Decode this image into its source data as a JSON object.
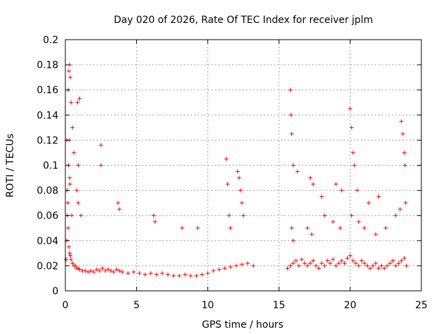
{
  "chart_data": {
    "type": "scatter",
    "title": "Day 020 of 2026, Rate Of TEC Index for receiver jplm",
    "xlabel": "GPS time / hours",
    "ylabel": "ROTI / TECUs",
    "xlim": [
      0,
      25
    ],
    "ylim": [
      0,
      0.2
    ],
    "x_ticks": [
      0,
      5,
      10,
      15,
      20,
      25
    ],
    "y_ticks": [
      0,
      0.02,
      0.04,
      0.06,
      0.08,
      0.1,
      0.12,
      0.14,
      0.16,
      0.18,
      0.2
    ],
    "x_tick_labels": [
      "0",
      "5",
      "10",
      "15",
      "20",
      "25"
    ],
    "y_tick_labels": [
      "0",
      "0.02",
      "0.04",
      "0.06",
      "0.08",
      "0.1",
      "0.12",
      "0.14",
      "0.16",
      "0.18",
      "0.2"
    ],
    "grid": true,
    "marker": "+",
    "color": "#ff0000",
    "series": [
      {
        "name": "ROTI",
        "sampling_note": "representative subset of dense point cloud",
        "x": [
          0.05,
          0.1,
          0.15,
          0.2,
          0.25,
          0.3,
          0.35,
          0.4,
          0.5,
          0.6,
          0.7,
          0.8,
          0.9,
          1.0,
          1.2,
          1.4,
          1.6,
          1.8,
          2.0,
          2.2,
          2.4,
          2.6,
          2.8,
          3.0,
          3.2,
          3.4,
          3.6,
          3.8,
          4.0,
          4.4,
          4.8,
          5.2,
          5.6,
          6.0,
          6.4,
          6.8,
          7.2,
          7.6,
          8.0,
          8.4,
          8.8,
          9.2,
          9.6,
          10.0,
          10.4,
          10.8,
          11.2,
          11.6,
          12.0,
          12.4,
          12.8,
          13.2,
          0.1,
          0.2,
          0.25,
          0.3,
          0.35,
          0.4,
          0.5,
          0.6,
          0.8,
          0.9,
          1.0,
          1.1,
          2.5,
          2.5,
          3.7,
          3.8,
          6.2,
          6.3,
          8.2,
          9.3,
          11.3,
          11.4,
          11.5,
          11.6,
          12.1,
          12.2,
          12.3,
          12.4,
          12.5,
          0.22,
          0.28,
          0.3,
          0.32,
          0.12,
          0.18,
          0.45,
          0.85,
          0.9,
          15.6,
          15.8,
          16.0,
          16.2,
          16.4,
          16.6,
          16.8,
          17.0,
          17.2,
          17.4,
          17.6,
          17.8,
          18.0,
          18.2,
          18.4,
          18.6,
          18.8,
          19.0,
          19.2,
          19.4,
          19.6,
          19.8,
          20.0,
          20.2,
          20.4,
          20.6,
          20.8,
          21.0,
          21.2,
          21.4,
          21.6,
          21.8,
          22.0,
          22.2,
          22.4,
          22.6,
          22.8,
          23.0,
          23.2,
          23.4,
          23.6,
          23.8,
          23.95,
          15.8,
          15.85,
          15.9,
          16.0,
          16.3,
          17.2,
          17.4,
          18.0,
          19.0,
          19.4,
          20.0,
          20.1,
          20.2,
          20.3,
          20.5,
          21.3,
          22.0,
          23.6,
          23.7,
          23.8,
          23.85,
          15.9,
          16.0,
          17.0,
          17.3,
          18.2,
          18.8,
          19.3,
          20.1,
          20.6,
          21.0,
          21.8,
          22.5,
          23.2,
          23.5,
          23.9
        ],
        "y": [
          0.025,
          0.04,
          0.06,
          0.05,
          0.035,
          0.03,
          0.028,
          0.025,
          0.022,
          0.02,
          0.02,
          0.018,
          0.018,
          0.017,
          0.016,
          0.016,
          0.015,
          0.016,
          0.015,
          0.017,
          0.016,
          0.018,
          0.016,
          0.017,
          0.016,
          0.015,
          0.017,
          0.016,
          0.015,
          0.014,
          0.015,
          0.014,
          0.013,
          0.014,
          0.013,
          0.014,
          0.013,
          0.012,
          0.012,
          0.013,
          0.012,
          0.012,
          0.013,
          0.014,
          0.016,
          0.017,
          0.018,
          0.019,
          0.02,
          0.021,
          0.022,
          0.02,
          0.12,
          0.16,
          0.175,
          0.18,
          0.17,
          0.15,
          0.13,
          0.11,
          0.08,
          0.07,
          0.153,
          0.06,
          0.116,
          0.1,
          0.07,
          0.065,
          0.06,
          0.055,
          0.05,
          0.05,
          0.105,
          0.085,
          0.06,
          0.05,
          0.095,
          0.09,
          0.08,
          0.07,
          0.06,
          0.1,
          0.12,
          0.09,
          0.085,
          0.08,
          0.07,
          0.06,
          0.15,
          0.1,
          0.018,
          0.02,
          0.022,
          0.024,
          0.02,
          0.025,
          0.022,
          0.02,
          0.022,
          0.024,
          0.02,
          0.018,
          0.022,
          0.02,
          0.024,
          0.022,
          0.025,
          0.02,
          0.022,
          0.024,
          0.022,
          0.026,
          0.028,
          0.024,
          0.022,
          0.02,
          0.024,
          0.022,
          0.02,
          0.018,
          0.02,
          0.022,
          0.018,
          0.02,
          0.018,
          0.02,
          0.022,
          0.024,
          0.02,
          0.022,
          0.024,
          0.026,
          0.02,
          0.16,
          0.14,
          0.125,
          0.1,
          0.095,
          0.09,
          0.085,
          0.075,
          0.085,
          0.08,
          0.145,
          0.13,
          0.11,
          0.1,
          0.08,
          0.07,
          0.075,
          0.135,
          0.125,
          0.11,
          0.1,
          0.05,
          0.04,
          0.05,
          0.045,
          0.06,
          0.055,
          0.05,
          0.06,
          0.055,
          0.05,
          0.045,
          0.05,
          0.06,
          0.065,
          0.07
        ]
      }
    ]
  }
}
